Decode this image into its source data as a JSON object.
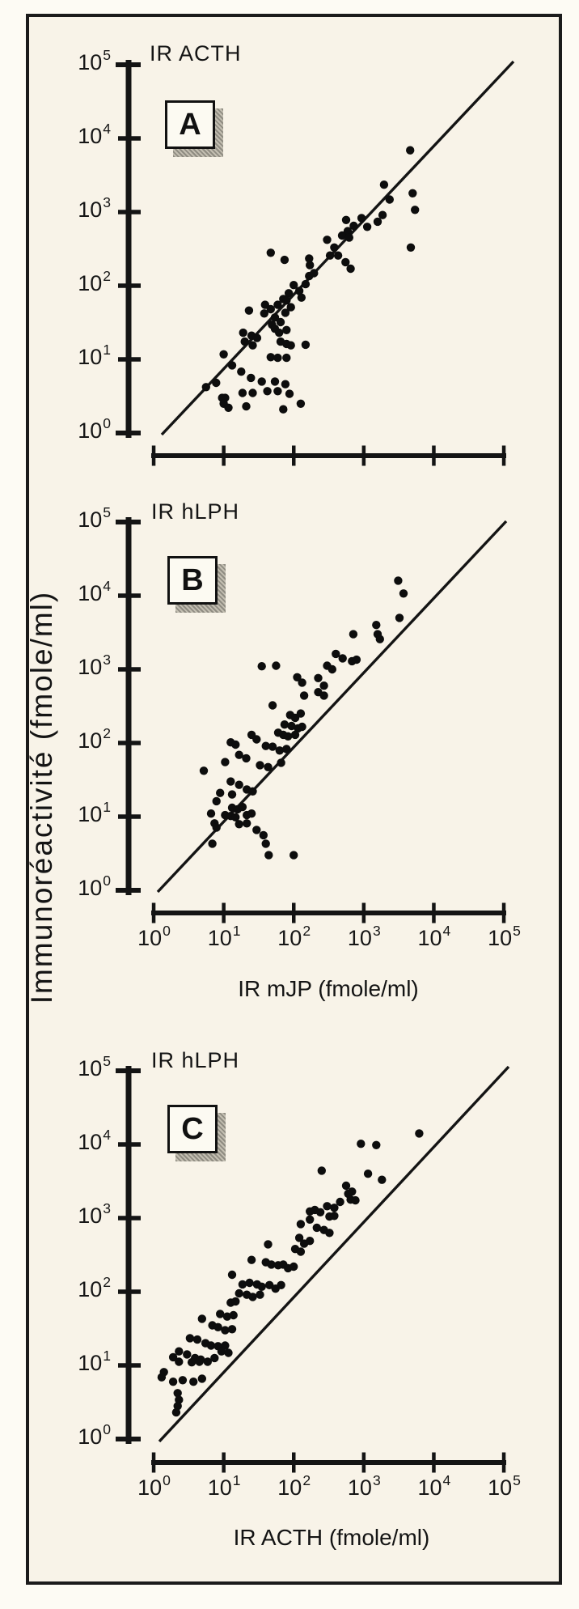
{
  "figure": {
    "ylabel": "Immunoréactivité (fmole/ml)",
    "background": "#f8f3e8",
    "frame_color": "#1b1b1b",
    "ink_color": "#141414",
    "dot_color": "#0d0d0d"
  },
  "chart_data": [
    {
      "type": "scatter",
      "panel": "A",
      "badge": "A",
      "title": "IR ACTH",
      "xlabel": "",
      "ylabel_unit": "fmole/ml",
      "xscale": "log",
      "yscale": "log",
      "xlim": [
        1,
        100000
      ],
      "ylim": [
        1,
        100000
      ],
      "x_tick_exponents": [
        0,
        1,
        2,
        3,
        4,
        5
      ],
      "y_tick_exponents": [
        0,
        1,
        2,
        3,
        4,
        5
      ],
      "x_tick_labels_visible": false,
      "identity_line": true,
      "points": [
        [
          4600,
          6900
        ],
        [
          1950,
          2350
        ],
        [
          5000,
          1800
        ],
        [
          5400,
          1070
        ],
        [
          2340,
          1480
        ],
        [
          930,
          830
        ],
        [
          1580,
          740
        ],
        [
          1860,
          910
        ],
        [
          560,
          780
        ],
        [
          720,
          650
        ],
        [
          590,
          550
        ],
        [
          4700,
          330
        ],
        [
          47,
          280
        ],
        [
          74,
          224
        ],
        [
          166,
          234
        ],
        [
          170,
          190
        ],
        [
          300,
          420
        ],
        [
          380,
          330
        ],
        [
          330,
          257
        ],
        [
          430,
          257
        ],
        [
          490,
          480
        ],
        [
          620,
          450
        ],
        [
          1120,
          630
        ],
        [
          166,
          135
        ],
        [
          195,
          148
        ],
        [
          148,
          105
        ],
        [
          120,
          85
        ],
        [
          129,
          69
        ],
        [
          100,
          102
        ],
        [
          85,
          79
        ],
        [
          71,
          66
        ],
        [
          59,
          55
        ],
        [
          47,
          48
        ],
        [
          38,
          42
        ],
        [
          54,
          37
        ],
        [
          65,
          32
        ],
        [
          76,
          43
        ],
        [
          91,
          51
        ],
        [
          550,
          209
        ],
        [
          650,
          170
        ],
        [
          23,
          46
        ],
        [
          39,
          55
        ],
        [
          79,
          63
        ],
        [
          19,
          23
        ],
        [
          25,
          21
        ],
        [
          30,
          19.5
        ],
        [
          20,
          17.4
        ],
        [
          26,
          15.5
        ],
        [
          49,
          29.5
        ],
        [
          54,
          26
        ],
        [
          62,
          23
        ],
        [
          79,
          25
        ],
        [
          65,
          17.4
        ],
        [
          79,
          16.2
        ],
        [
          91,
          15.5
        ],
        [
          47,
          10.7
        ],
        [
          59,
          10.5
        ],
        [
          79,
          10.5
        ],
        [
          10,
          11.7
        ],
        [
          13.2,
          8.3
        ],
        [
          17.8,
          6.8
        ],
        [
          24.5,
          5.6
        ],
        [
          35,
          5
        ],
        [
          54,
          5
        ],
        [
          76,
          4.6
        ],
        [
          10.5,
          3
        ],
        [
          18.6,
          3.5
        ],
        [
          26,
          3.5
        ],
        [
          42,
          3.7
        ],
        [
          59,
          3.7
        ],
        [
          87,
          3.4
        ],
        [
          7.8,
          4.8
        ],
        [
          9.5,
          3
        ],
        [
          10,
          2.5
        ],
        [
          5.6,
          4.2
        ],
        [
          11.7,
          2.2
        ],
        [
          71,
          2.1
        ],
        [
          126,
          2.5
        ],
        [
          148,
          15.8
        ],
        [
          21,
          2.3
        ]
      ]
    },
    {
      "type": "scatter",
      "panel": "B",
      "badge": "B",
      "title": "IR hLPH",
      "xlabel": "IR mJP (fmole/ml)",
      "ylabel_unit": "fmole/ml",
      "xscale": "log",
      "yscale": "log",
      "xlim": [
        1,
        100000
      ],
      "ylim": [
        1,
        100000
      ],
      "x_tick_exponents": [
        0,
        1,
        2,
        3,
        4,
        5
      ],
      "y_tick_exponents": [
        0,
        1,
        2,
        3,
        4,
        5
      ],
      "x_tick_labels_visible": true,
      "identity_line": true,
      "points": [
        [
          3100,
          16000
        ],
        [
          3700,
          10700
        ],
        [
          3240,
          5000
        ],
        [
          1510,
          4000
        ],
        [
          1580,
          3000
        ],
        [
          1700,
          2570
        ],
        [
          710,
          3000
        ],
        [
          400,
          1620
        ],
        [
          500,
          1410
        ],
        [
          680,
          1290
        ],
        [
          790,
          1350
        ],
        [
          300,
          1120
        ],
        [
          355,
          1000
        ],
        [
          35,
          1100
        ],
        [
          56,
          1120
        ],
        [
          112,
          780
        ],
        [
          132,
          660
        ],
        [
          224,
          760
        ],
        [
          270,
          600
        ],
        [
          141,
          440
        ],
        [
          224,
          490
        ],
        [
          270,
          440
        ],
        [
          50,
          324
        ],
        [
          89,
          240
        ],
        [
          105,
          219
        ],
        [
          126,
          251
        ],
        [
          74,
          178
        ],
        [
          93,
          170
        ],
        [
          115,
          158
        ],
        [
          132,
          166
        ],
        [
          60,
          138
        ],
        [
          71,
          129
        ],
        [
          83,
          123
        ],
        [
          105,
          129
        ],
        [
          25,
          129
        ],
        [
          29.5,
          112
        ],
        [
          12.6,
          102
        ],
        [
          14.8,
          95
        ],
        [
          40,
          91
        ],
        [
          50,
          89
        ],
        [
          63,
          79
        ],
        [
          79,
          83
        ],
        [
          16.6,
          69
        ],
        [
          21,
          62
        ],
        [
          10.5,
          55
        ],
        [
          33,
          50
        ],
        [
          43,
          47
        ],
        [
          66,
          54
        ],
        [
          5.2,
          42
        ],
        [
          12.6,
          30
        ],
        [
          16.6,
          27
        ],
        [
          8.9,
          21
        ],
        [
          13.2,
          20
        ],
        [
          21.4,
          23.4
        ],
        [
          26,
          22
        ],
        [
          7.9,
          16.2
        ],
        [
          13.2,
          13.2
        ],
        [
          15.8,
          12.6
        ],
        [
          18.6,
          13.5
        ],
        [
          10.5,
          10.5
        ],
        [
          12.6,
          10.2
        ],
        [
          21.4,
          10.5
        ],
        [
          25,
          11
        ],
        [
          7.4,
          8.1
        ],
        [
          16.6,
          7.9
        ],
        [
          21.4,
          8.1
        ],
        [
          29.5,
          6.6
        ],
        [
          7.9,
          7.1
        ],
        [
          37,
          5.6
        ],
        [
          40,
          4.3
        ],
        [
          6.9,
          4.3
        ],
        [
          44,
          3
        ],
        [
          100,
          3
        ],
        [
          6.6,
          11
        ],
        [
          14.8,
          9.8
        ]
      ]
    },
    {
      "type": "scatter",
      "panel": "C",
      "badge": "C",
      "title": "IR hLPH",
      "xlabel": "IR ACTH (fmole/ml)",
      "ylabel_unit": "fmole/ml",
      "xscale": "log",
      "yscale": "log",
      "xlim": [
        1,
        100000
      ],
      "ylim": [
        1,
        100000
      ],
      "x_tick_exponents": [
        0,
        1,
        2,
        3,
        4,
        5
      ],
      "y_tick_exponents": [
        0,
        1,
        2,
        3,
        4,
        5
      ],
      "x_tick_labels_visible": true,
      "identity_line": true,
      "points": [
        [
          6200,
          14100
        ],
        [
          910,
          10200
        ],
        [
          1510,
          9800
        ],
        [
          251,
          4400
        ],
        [
          1150,
          4000
        ],
        [
          1820,
          3310
        ],
        [
          560,
          2750
        ],
        [
          680,
          2290
        ],
        [
          600,
          2140
        ],
        [
          650,
          1780
        ],
        [
          760,
          1740
        ],
        [
          460,
          1660
        ],
        [
          380,
          1380
        ],
        [
          300,
          1450
        ],
        [
          170,
          1230
        ],
        [
          200,
          1290
        ],
        [
          240,
          1200
        ],
        [
          324,
          1050
        ],
        [
          380,
          1070
        ],
        [
          170,
          955
        ],
        [
          126,
          830
        ],
        [
          214,
          740
        ],
        [
          270,
          690
        ],
        [
          324,
          630
        ],
        [
          120,
          540
        ],
        [
          141,
          450
        ],
        [
          170,
          490
        ],
        [
          43,
          440
        ],
        [
          105,
          380
        ],
        [
          126,
          350
        ],
        [
          25,
          270
        ],
        [
          40,
          251
        ],
        [
          48,
          234
        ],
        [
          60,
          229
        ],
        [
          71,
          234
        ],
        [
          83,
          209
        ],
        [
          100,
          219
        ],
        [
          13.2,
          170
        ],
        [
          18.6,
          126
        ],
        [
          23.4,
          132
        ],
        [
          30,
          126
        ],
        [
          35,
          117
        ],
        [
          45,
          123
        ],
        [
          55,
          110
        ],
        [
          66,
          123
        ],
        [
          16.6,
          95
        ],
        [
          21.4,
          91
        ],
        [
          26,
          85
        ],
        [
          33,
          91
        ],
        [
          12.6,
          71
        ],
        [
          14.8,
          74
        ],
        [
          8.9,
          50
        ],
        [
          11.2,
          46
        ],
        [
          13.8,
          48
        ],
        [
          4.9,
          43
        ],
        [
          6.9,
          35
        ],
        [
          8.3,
          33
        ],
        [
          10.5,
          30
        ],
        [
          13.2,
          31
        ],
        [
          3.3,
          23.4
        ],
        [
          4.2,
          22.4
        ],
        [
          5.5,
          20
        ],
        [
          6.6,
          18.6
        ],
        [
          8.3,
          18.2
        ],
        [
          10.5,
          18.6
        ],
        [
          2.3,
          15.5
        ],
        [
          3,
          14.1
        ],
        [
          3.9,
          12.6
        ],
        [
          4.7,
          12
        ],
        [
          5.9,
          11.2
        ],
        [
          1.4,
          8.1
        ],
        [
          1.9,
          12.9
        ],
        [
          2.3,
          11.2
        ],
        [
          3.5,
          11
        ],
        [
          4.5,
          11.2
        ],
        [
          7.4,
          12.6
        ],
        [
          9.3,
          15.5
        ],
        [
          11.7,
          14.8
        ],
        [
          1.3,
          6.9
        ],
        [
          1.9,
          6
        ],
        [
          2.6,
          6.3
        ],
        [
          3.7,
          6
        ],
        [
          4.9,
          6.6
        ],
        [
          2.2,
          4.2
        ],
        [
          2.3,
          3.4
        ],
        [
          2.2,
          2.8
        ],
        [
          2.1,
          2.3
        ]
      ]
    }
  ]
}
